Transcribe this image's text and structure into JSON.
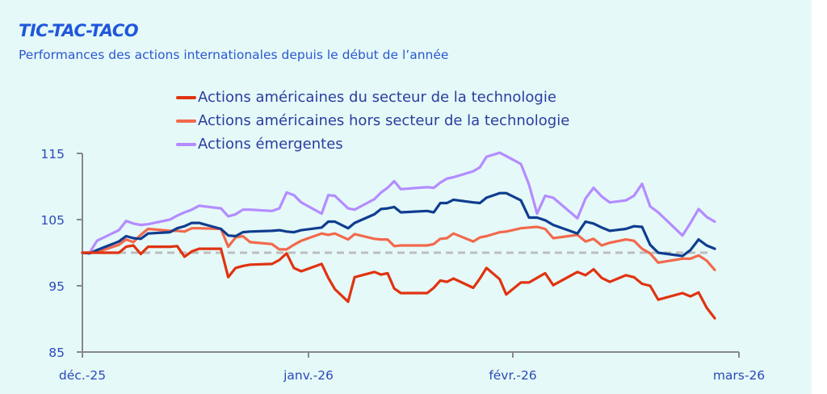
{
  "title": "TIC-TAC-TACO",
  "subtitle": "Performances des actions internationales depuis le début de l’année",
  "colors": {
    "background": "#e5f9f8",
    "title": "#1f57dc",
    "text": "#2a3da0",
    "axis": "#888888",
    "baseline": "#bdbdbd"
  },
  "chart_data": {
    "type": "line",
    "title": "TIC-TAC-TACO",
    "subtitle": "Performances des actions internationales depuis le début de l’année",
    "xlabel": "",
    "ylabel": "",
    "ylim": [
      85,
      115
    ],
    "yticks": [
      85,
      95,
      105,
      115
    ],
    "xticks": [
      {
        "date": "2025-12-01",
        "label": "déc.-25"
      },
      {
        "date": "2026-01-01",
        "label": "janv.-26"
      },
      {
        "date": "2026-02-01",
        "label": "févr.-26"
      },
      {
        "date": "2026-03-01",
        "label": "mars-26"
      }
    ],
    "grid": false,
    "legend_position": "top",
    "baseline": {
      "value": 100,
      "style": "dashed",
      "color": "#bdbdbd"
    },
    "x": [
      "2025-12-01",
      "2025-12-02",
      "2025-12-03",
      "2025-12-06",
      "2025-12-07",
      "2025-12-08",
      "2025-12-09",
      "2025-12-10",
      "2025-12-13",
      "2025-12-14",
      "2025-12-15",
      "2025-12-16",
      "2025-12-17",
      "2025-12-20",
      "2025-12-21",
      "2025-12-22",
      "2025-12-23",
      "2025-12-24",
      "2025-12-27",
      "2025-12-28",
      "2025-12-29",
      "2025-12-30",
      "2025-12-31",
      "2026-01-03",
      "2026-01-04",
      "2026-01-05",
      "2026-01-07",
      "2026-01-08",
      "2026-01-11",
      "2026-01-12",
      "2026-01-13",
      "2026-01-14",
      "2026-01-15",
      "2026-01-19",
      "2026-01-20",
      "2026-01-21",
      "2026-01-22",
      "2026-01-23",
      "2026-01-26",
      "2026-01-27",
      "2026-01-28",
      "2026-01-30",
      "2026-01-31",
      "2026-02-02",
      "2026-02-03",
      "2026-02-04",
      "2026-02-05",
      "2026-02-06",
      "2026-02-09",
      "2026-02-10",
      "2026-02-11",
      "2026-02-12",
      "2026-02-13",
      "2026-02-15",
      "2026-02-16",
      "2026-02-17",
      "2026-02-18",
      "2026-02-19",
      "2026-02-22",
      "2026-02-23",
      "2026-02-24",
      "2026-02-25",
      "2026-02-26"
    ],
    "series": [
      {
        "name": "Actions américaines du secteur de la technologie",
        "color": "#e03310",
        "in_legend": true,
        "values": [
          100,
          100,
          100,
          100,
          100.9,
          101.1,
          99.8,
          100.9,
          100.9,
          101.0,
          99.4,
          100.2,
          100.6,
          100.6,
          96.3,
          97.7,
          98.0,
          98.2,
          98.3,
          98.9,
          99.9,
          97.7,
          97.2,
          98.3,
          96.2,
          94.5,
          92.6,
          96.3,
          97.1,
          96.7,
          96.9,
          94.6,
          93.9,
          93.9,
          94.7,
          95.8,
          95.6,
          96.1,
          94.7,
          96.1,
          97.7,
          96.0,
          93.7,
          95.5,
          95.5,
          96.2,
          96.9,
          95.1,
          97.1,
          96.6,
          97.5,
          96.2,
          95.6,
          96.6,
          96.3,
          95.3,
          95.0,
          92.9,
          93.9,
          93.4,
          94.0,
          91.7,
          90.1
        ]
      },
      {
        "name": "Actions américaines hors secteur de la technologie",
        "color": "#f2694c",
        "in_legend": true,
        "values": [
          100,
          100,
          100.1,
          101.2,
          102.0,
          101.6,
          102.7,
          103.6,
          103.3,
          103.3,
          103.2,
          103.7,
          103.7,
          103.6,
          100.9,
          102.3,
          102.5,
          101.6,
          101.3,
          100.5,
          100.5,
          101.2,
          101.8,
          102.9,
          102.7,
          102.9,
          102.0,
          102.8,
          102.1,
          102.0,
          102.0,
          101.0,
          101.1,
          101.1,
          101.3,
          102.1,
          102.2,
          102.9,
          101.7,
          102.3,
          102.5,
          103.1,
          103.2,
          103.7,
          103.8,
          103.9,
          103.6,
          102.2,
          102.7,
          101.7,
          102.1,
          101.1,
          101.5,
          102.0,
          101.8,
          100.6,
          99.9,
          98.5,
          99.1,
          99.1,
          99.6,
          98.8,
          97.4
        ]
      },
      {
        "name": "Actions émergentes",
        "color": "#b48cff",
        "in_legend": true,
        "values": [
          100,
          100,
          101.8,
          103.4,
          104.8,
          104.4,
          104.2,
          104.3,
          105.0,
          105.6,
          106.1,
          106.5,
          107.1,
          106.7,
          105.5,
          105.8,
          106.5,
          106.5,
          106.3,
          106.7,
          109.1,
          108.7,
          107.6,
          105.9,
          108.7,
          108.6,
          106.7,
          106.5,
          108.1,
          109.1,
          109.8,
          110.8,
          109.6,
          109.9,
          109.8,
          110.6,
          111.2,
          111.4,
          112.3,
          112.9,
          114.5,
          115.1,
          114.6,
          113.4,
          110.3,
          105.9,
          108.6,
          108.3,
          105.2,
          108.2,
          109.8,
          108.5,
          107.6,
          107.9,
          108.6,
          110.4,
          107.0,
          106.1,
          102.6,
          104.5,
          106.6,
          105.4,
          104.7
        ]
      },
      {
        "name": "",
        "color": "#0f3d8f",
        "in_legend": false,
        "values": [
          100,
          99.9,
          100.4,
          101.7,
          102.5,
          102.2,
          102.1,
          102.9,
          103.1,
          103.7,
          104.0,
          104.5,
          104.5,
          103.6,
          102.6,
          102.5,
          103.1,
          103.2,
          103.3,
          103.4,
          103.2,
          103.1,
          103.4,
          103.8,
          104.7,
          104.7,
          103.7,
          104.5,
          105.8,
          106.6,
          106.7,
          106.9,
          106.1,
          106.3,
          106.1,
          107.5,
          107.5,
          108.0,
          107.6,
          107.5,
          108.3,
          109.0,
          109.0,
          107.9,
          105.3,
          105.3,
          104.9,
          104.2,
          102.9,
          104.7,
          104.4,
          103.8,
          103.3,
          103.6,
          104.0,
          103.9,
          101.2,
          100.0,
          99.5,
          100.4,
          102.0,
          101.1,
          100.6
        ]
      }
    ]
  }
}
